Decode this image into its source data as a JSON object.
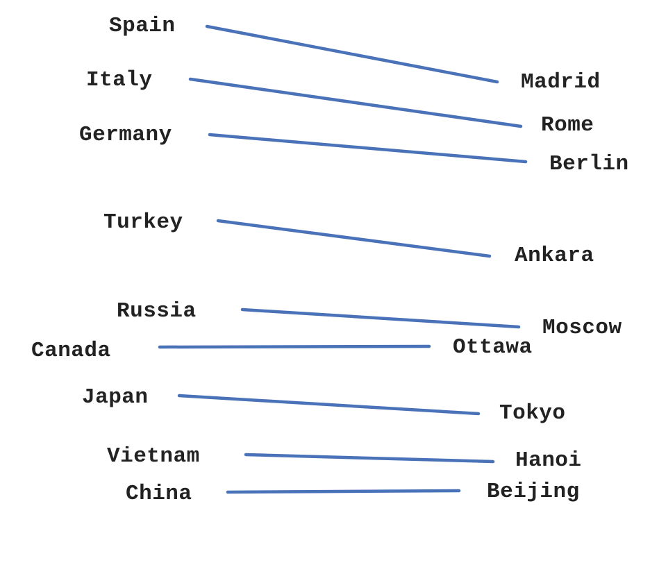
{
  "line_color": "#4a72b8",
  "pairs": [
    {
      "country": "Spain",
      "capital": "Madrid"
    },
    {
      "country": "Italy",
      "capital": "Rome"
    },
    {
      "country": "Germany",
      "capital": "Berlin"
    },
    {
      "country": "Turkey",
      "capital": "Ankara"
    },
    {
      "country": "Russia",
      "capital": "Moscow"
    },
    {
      "country": "Canada",
      "capital": "Ottawa"
    },
    {
      "country": "Japan",
      "capital": "Tokyo"
    },
    {
      "country": "Vietnam",
      "capital": "Hanoi"
    },
    {
      "country": "China",
      "capital": "Beijing"
    }
  ]
}
